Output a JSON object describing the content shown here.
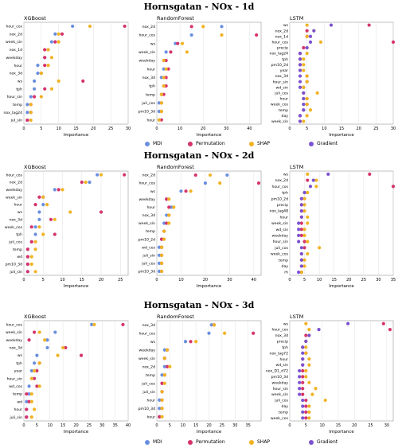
{
  "legend": [
    {
      "name": "MDI",
      "color": "#6a8fe0"
    },
    {
      "name": "Permutation",
      "color": "#d6336c"
    },
    {
      "name": "SHAP",
      "color": "#f0b323"
    },
    {
      "name": "Gradient",
      "color": "#7b52d0"
    }
  ],
  "sections": [
    {
      "title": "Hornsgatan - NOx - 1d"
    },
    {
      "title": "Hornsgatan - NOx - 2d"
    },
    {
      "title": "Hornsgatan - NOx - 3d"
    }
  ],
  "chart_data": [
    {
      "type": "scatter",
      "title": "XGBoost",
      "xlabel": "Importance",
      "xlim": [
        0,
        30
      ],
      "xticks": [
        0,
        5,
        10,
        15,
        20,
        25,
        30
      ],
      "categories": [
        "hour_cos",
        "nox_2d",
        "week_sin",
        "nox_1d",
        "weekday",
        "hour",
        "nox_3d",
        "ws",
        "tph",
        "hour_sin",
        "temp",
        "nox_lag24",
        "jul_sin"
      ],
      "series": [
        {
          "name": "MDI",
          "values": [
            14,
            9,
            8,
            7,
            6,
            4,
            4,
            3,
            3,
            2,
            1,
            1,
            1
          ]
        },
        {
          "name": "Permutation",
          "values": [
            29,
            11,
            9,
            6,
            6,
            6,
            5,
            17,
            6,
            3,
            2,
            2,
            1
          ]
        },
        {
          "name": "SHAP",
          "values": [
            19,
            10,
            10,
            7,
            8,
            7,
            5,
            10,
            8,
            5,
            2,
            2,
            2
          ]
        }
      ]
    },
    {
      "type": "scatter",
      "title": "RandomForest",
      "xlabel": "Importance",
      "xlim": [
        0,
        45
      ],
      "xticks": [
        0,
        10,
        20,
        30,
        40
      ],
      "categories": [
        "nox_2d",
        "hour_cos",
        "ws",
        "week_sin",
        "weekday",
        "hour",
        "nox_3d",
        "tph",
        "temp",
        "juli_cos",
        "pm10_3d",
        "hour"
      ],
      "series": [
        {
          "name": "MDI",
          "values": [
            28,
            15,
            8,
            4,
            3,
            3,
            2,
            3,
            2,
            1,
            1,
            1
          ]
        },
        {
          "name": "Permutation",
          "values": [
            15,
            43,
            9,
            6,
            4,
            5,
            4,
            4,
            3,
            2,
            2,
            2
          ]
        },
        {
          "name": "SHAP",
          "values": [
            20,
            28,
            11,
            13,
            3,
            4,
            3,
            3,
            2,
            2,
            2,
            1
          ]
        }
      ]
    },
    {
      "type": "scatter",
      "title": "LSTM",
      "xlabel": "Importance",
      "xlim": [
        0,
        30
      ],
      "xticks": [
        0,
        5,
        10,
        15,
        20,
        25,
        30
      ],
      "categories": [
        "ws",
        "nox_2d",
        "nox_1d",
        "hour_cos",
        "precip",
        "nox_lag24",
        "tph",
        "pm10_2d",
        "year",
        "nox_3d",
        "hour_sin",
        "wd_sin",
        "juli_cos",
        "hour",
        "week_cos",
        "temp",
        "day",
        "week_sin"
      ],
      "series": [
        {
          "name": "Permutation",
          "values": [
            23,
            5,
            5,
            30,
            4,
            3,
            3,
            3,
            3,
            5,
            5,
            4,
            4,
            5,
            5,
            4,
            3,
            3
          ]
        },
        {
          "name": "SHAP",
          "values": [
            5,
            7,
            5,
            9,
            5,
            5,
            4,
            4,
            4,
            5,
            5,
            4,
            8,
            5,
            5,
            6,
            5,
            4
          ]
        },
        {
          "name": "Gradient",
          "values": [
            12,
            7,
            6,
            6,
            5,
            3,
            3,
            3,
            3,
            3,
            3,
            3,
            4,
            4,
            4,
            4,
            3,
            3
          ]
        }
      ]
    },
    {
      "type": "scatter",
      "title": "XGBoost",
      "xlabel": "Importance",
      "xlim": [
        0,
        27
      ],
      "xticks": [
        0,
        5,
        10,
        15,
        20,
        25
      ],
      "categories": [
        "hour_cos",
        "nox_2d",
        "weekday",
        "week_sin",
        "hour",
        "ws",
        "nox_3d",
        "week_cos",
        "tph",
        "juli_cos",
        "temp",
        "wd",
        "pm10_3d",
        "juli_sin"
      ],
      "series": [
        {
          "name": "MDI",
          "values": [
            19,
            17,
            8,
            5,
            5,
            4,
            4,
            3,
            3,
            2,
            1,
            1,
            1,
            1
          ]
        },
        {
          "name": "Permutation",
          "values": [
            26,
            15,
            9,
            4,
            3,
            20,
            7,
            2,
            8,
            2,
            1,
            1,
            1,
            1
          ]
        },
        {
          "name": "SHAP",
          "values": [
            20,
            16,
            10,
            5,
            6,
            12,
            8,
            4,
            5,
            3,
            3,
            2,
            2,
            3
          ]
        }
      ]
    },
    {
      "type": "scatter",
      "title": "RandomForest",
      "xlabel": "Importance",
      "xlim": [
        0,
        43
      ],
      "xticks": [
        0,
        10,
        20,
        30,
        40
      ],
      "categories": [
        "nox_2d",
        "hour_cos",
        "ws",
        "weekday",
        "hour",
        "nox_3d",
        "week_sin",
        "temp",
        "pm10_2d",
        "wd_cos",
        "juli_sin",
        "juli_cos",
        "pm10_3d"
      ],
      "series": [
        {
          "name": "MDI",
          "values": [
            29,
            20,
            10,
            4,
            6,
            4,
            3,
            3,
            2,
            1,
            1,
            1,
            1
          ]
        },
        {
          "name": "Permutation",
          "values": [
            16,
            42,
            12,
            4,
            5,
            5,
            4,
            3,
            2,
            2,
            2,
            2,
            2
          ]
        },
        {
          "name": "SHAP",
          "values": [
            22,
            26,
            14,
            5,
            7,
            5,
            5,
            3,
            3,
            2,
            2,
            2,
            2
          ]
        }
      ]
    },
    {
      "type": "scatter",
      "title": "LSTM",
      "xlabel": "Importance",
      "xlim": [
        0,
        35
      ],
      "xticks": [
        0,
        5,
        10,
        15,
        20,
        25,
        30,
        35
      ],
      "categories": [
        "ws",
        "nox_2d",
        "hour_cos",
        "tph",
        "pm10_2d",
        "precip",
        "nox_lag48",
        "hour",
        "week_sin",
        "wd_sin",
        "weekday",
        "hour_sin",
        "juli_cos",
        "week_cos",
        "temp",
        "day",
        "rh"
      ],
      "series": [
        {
          "name": "Permutation",
          "values": [
            27,
            6,
            35,
            5,
            4,
            4,
            4,
            4,
            4,
            4,
            4,
            5,
            5,
            4,
            4,
            4,
            4
          ]
        },
        {
          "name": "SHAP",
          "values": [
            6,
            9,
            9,
            6,
            5,
            5,
            5,
            6,
            6,
            5,
            5,
            6,
            10,
            6,
            5,
            5,
            4
          ]
        },
        {
          "name": "Gradient",
          "values": [
            13,
            8,
            7,
            5,
            4,
            4,
            4,
            4,
            3,
            3,
            3,
            3,
            4,
            4,
            4,
            4,
            3
          ]
        }
      ]
    },
    {
      "type": "scatter",
      "title": "XGBoost",
      "xlabel": "Importance",
      "xlim": [
        0,
        40
      ],
      "xticks": [
        0,
        5,
        10,
        15,
        20,
        25,
        30,
        35,
        40
      ],
      "categories": [
        "hour_cos",
        "week_sin",
        "weekday",
        "nox_3d",
        "ws",
        "tph",
        "year",
        "hour_sin",
        "wd_cos",
        "temp",
        "wd",
        "hour",
        "juli_sin"
      ],
      "series": [
        {
          "name": "MDI",
          "values": [
            26,
            12,
            9,
            9,
            5,
            4,
            3,
            3,
            2,
            2,
            1,
            1,
            1
          ]
        },
        {
          "name": "Permutation",
          "values": [
            38,
            4,
            2,
            16,
            22,
            6,
            5,
            4,
            5,
            1,
            2,
            1,
            1
          ]
        },
        {
          "name": "SHAP",
          "values": [
            27,
            6,
            8,
            15,
            13,
            6,
            4,
            3,
            6,
            3,
            3,
            4,
            3
          ]
        }
      ]
    },
    {
      "type": "scatter",
      "title": "RandomForest",
      "xlabel": "Importance",
      "xlim": [
        0,
        40
      ],
      "xticks": [
        0,
        5,
        10,
        15,
        20,
        25,
        30,
        35
      ],
      "categories": [
        "nox_3d",
        "hour_cos",
        "ws",
        "weekday",
        "week_sin",
        "nox_2d",
        "temp",
        "juli_cos",
        "juli_sin",
        "hour",
        "pm10_3d",
        "hour"
      ],
      "series": [
        {
          "name": "MDI",
          "values": [
            21,
            20,
            11,
            3,
            3,
            3,
            2,
            2,
            2,
            1,
            1,
            1
          ]
        },
        {
          "name": "Permutation",
          "values": [
            22,
            37,
            13,
            4,
            3,
            4,
            3,
            2,
            2,
            2,
            2,
            1
          ]
        },
        {
          "name": "SHAP",
          "values": [
            22,
            26,
            15,
            4,
            3,
            5,
            3,
            3,
            2,
            2,
            2,
            2
          ]
        }
      ]
    },
    {
      "type": "scatter",
      "title": "LSTM",
      "xlabel": "Importance",
      "xlim": [
        0,
        32
      ],
      "xticks": [
        0,
        5,
        10,
        15,
        20,
        25,
        30
      ],
      "categories": [
        "ws",
        "hour_cos",
        "nox_3d",
        "precip",
        "tph",
        "nox_lag72",
        "hour",
        "wd_sin",
        "nox_D1_d72",
        "pm10_3d",
        "weekday",
        "hour_sin",
        "week_sin",
        "juli_cos",
        "day",
        "temp",
        "week_cos"
      ],
      "series": [
        {
          "name": "Permutation",
          "values": [
            29,
            31,
            5,
            5,
            4,
            5,
            4,
            4,
            4,
            4,
            4,
            4,
            4,
            5,
            5,
            5,
            5
          ]
        },
        {
          "name": "SHAP",
          "values": [
            5,
            6,
            6,
            5,
            5,
            5,
            6,
            6,
            5,
            5,
            6,
            8,
            7,
            11,
            6,
            6,
            6
          ]
        },
        {
          "name": "Gradient",
          "values": [
            18,
            9,
            6,
            5,
            4,
            4,
            4,
            4,
            3,
            3,
            3,
            3,
            3,
            4,
            4,
            4,
            4
          ]
        }
      ]
    }
  ]
}
